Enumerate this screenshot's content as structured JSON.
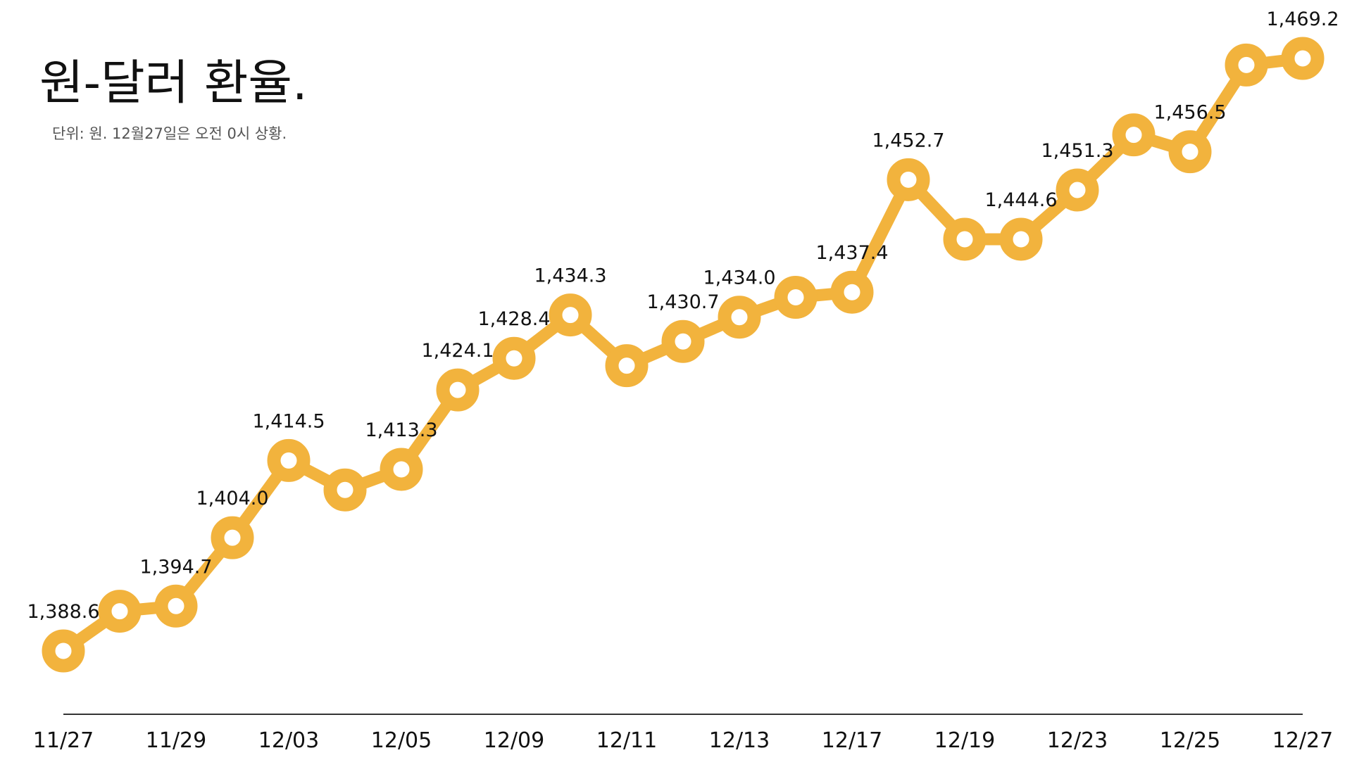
{
  "chart_data": {
    "type": "line",
    "title": "원-달러 환율.",
    "subtitle": "단위: 원. 12월27일은 오전 0시 상황.",
    "xlabel": "",
    "ylabel": "",
    "ylim": [
      1388.6,
      1469.2
    ],
    "grid": false,
    "legend": "none",
    "line_color": "#F2B33D",
    "marker_fill": "#FFFFFF",
    "x_tick_labels": [
      "11/27",
      "11/29",
      "12/03",
      "12/05",
      "12/09",
      "12/11",
      "12/13",
      "12/17",
      "12/19",
      "12/23",
      "12/25",
      "12/27"
    ],
    "series": [
      {
        "points": [
          {
            "value": 1388.6,
            "label": "1,388.6",
            "tick": "11/27"
          },
          {
            "value": 1394.0,
            "label": ""
          },
          {
            "value": 1394.7,
            "label": "1,394.7",
            "tick": "11/29"
          },
          {
            "value": 1404.0,
            "label": "1,404.0"
          },
          {
            "value": 1414.5,
            "label": "1,414.5",
            "tick": "12/03"
          },
          {
            "value": 1410.5,
            "label": ""
          },
          {
            "value": 1413.3,
            "label": "1,413.3",
            "tick": "12/05"
          },
          {
            "value": 1424.1,
            "label": "1,424.1"
          },
          {
            "value": 1428.4,
            "label": "1,428.4",
            "tick": "12/09"
          },
          {
            "value": 1434.3,
            "label": "1,434.3"
          },
          {
            "value": 1427.4,
            "label": "",
            "tick": "12/11"
          },
          {
            "value": 1430.7,
            "label": "1,430.7"
          },
          {
            "value": 1434.0,
            "label": "1,434.0",
            "tick": "12/13"
          },
          {
            "value": 1436.7,
            "label": ""
          },
          {
            "value": 1437.4,
            "label": "1,437.4",
            "tick": "12/17"
          },
          {
            "value": 1452.7,
            "label": "1,452.7"
          },
          {
            "value": 1444.6,
            "label": "",
            "tick": "12/19"
          },
          {
            "value": 1444.6,
            "label": "1,444.6"
          },
          {
            "value": 1451.3,
            "label": "1,451.3",
            "tick": "12/23"
          },
          {
            "value": 1458.8,
            "label": ""
          },
          {
            "value": 1456.5,
            "label": "1,456.5",
            "tick": "12/25"
          },
          {
            "value": 1468.3,
            "label": ""
          },
          {
            "value": 1469.2,
            "label": "1,469.2",
            "tick": "12/27"
          }
        ]
      }
    ]
  }
}
